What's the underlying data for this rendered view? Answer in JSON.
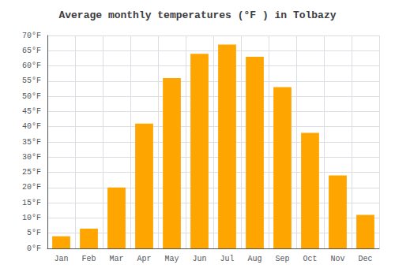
{
  "chart_data": {
    "type": "bar",
    "title": "Average monthly temperatures (°F ) in Tolbazy",
    "categories": [
      "Jan",
      "Feb",
      "Mar",
      "Apr",
      "May",
      "Jun",
      "Jul",
      "Aug",
      "Sep",
      "Oct",
      "Nov",
      "Dec"
    ],
    "values": [
      4,
      6.5,
      20,
      41,
      56,
      64,
      67,
      63,
      53,
      38,
      24,
      11
    ],
    "color": "#FFA500",
    "ylim": [
      0,
      70
    ],
    "yticks": [
      {
        "value": 0,
        "label": "0°F"
      },
      {
        "value": 5,
        "label": "5°F"
      },
      {
        "value": 10,
        "label": "10°F"
      },
      {
        "value": 15,
        "label": "15°F"
      },
      {
        "value": 20,
        "label": "20°F"
      },
      {
        "value": 25,
        "label": "25°F"
      },
      {
        "value": 30,
        "label": "30°F"
      },
      {
        "value": 35,
        "label": "35°F"
      },
      {
        "value": 40,
        "label": "40°F"
      },
      {
        "value": 45,
        "label": "45°F"
      },
      {
        "value": 50,
        "label": "50°F"
      },
      {
        "value": 55,
        "label": "55°F"
      },
      {
        "value": 60,
        "label": "60°F"
      },
      {
        "value": 65,
        "label": "65°F"
      },
      {
        "value": 70,
        "label": "70°F"
      }
    ],
    "grid": true
  }
}
